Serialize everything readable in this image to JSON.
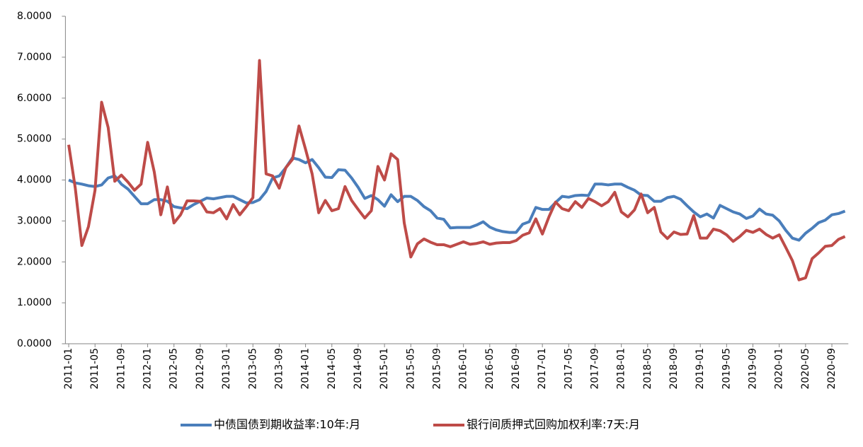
{
  "chart_data": {
    "type": "line",
    "categories": [
      "2011-01",
      null,
      null,
      null,
      "2011-05",
      null,
      null,
      null,
      "2011-09",
      null,
      null,
      null,
      "2012-01",
      null,
      null,
      null,
      "2012-05",
      null,
      null,
      null,
      "2012-09",
      null,
      null,
      null,
      "2013-01",
      null,
      null,
      null,
      "2013-05",
      null,
      null,
      null,
      "2013-09",
      null,
      null,
      null,
      "2014-01",
      null,
      null,
      null,
      "2014-05",
      null,
      null,
      null,
      "2014-09",
      null,
      null,
      null,
      "2015-01",
      null,
      null,
      null,
      "2015-05",
      null,
      null,
      null,
      "2015-09",
      null,
      null,
      null,
      "2016-01",
      null,
      null,
      null,
      "2016-05",
      null,
      null,
      null,
      "2016-09",
      null,
      null,
      null,
      "2017-01",
      null,
      null,
      null,
      "2017-05",
      null,
      null,
      null,
      "2017-09",
      null,
      null,
      null,
      "2018-01",
      null,
      null,
      null,
      "2018-05",
      null,
      null,
      null,
      "2018-09",
      null,
      null,
      null,
      "2019-01",
      null,
      null,
      null,
      "2019-05",
      null,
      null,
      null,
      "2019-09",
      null,
      null,
      null,
      "2020-01",
      null,
      null,
      null,
      "2020-05",
      null,
      null,
      null,
      "2020-09",
      null,
      null
    ],
    "series": [
      {
        "name": "中债国债到期收益率:10年:月",
        "color": "#4a7ebb",
        "values": [
          4.0,
          3.93,
          3.9,
          3.86,
          3.84,
          3.88,
          4.05,
          4.1,
          3.9,
          3.78,
          3.6,
          3.42,
          3.42,
          3.52,
          3.52,
          3.48,
          3.35,
          3.32,
          3.3,
          3.4,
          3.48,
          3.56,
          3.54,
          3.57,
          3.6,
          3.6,
          3.52,
          3.44,
          3.45,
          3.52,
          3.72,
          4.05,
          4.1,
          4.3,
          4.54,
          4.5,
          4.42,
          4.5,
          4.3,
          4.07,
          4.06,
          4.25,
          4.24,
          4.05,
          3.82,
          3.55,
          3.62,
          3.52,
          3.36,
          3.64,
          3.47,
          3.6,
          3.6,
          3.5,
          3.35,
          3.25,
          3.07,
          3.04,
          2.83,
          2.84,
          2.84,
          2.84,
          2.9,
          2.98,
          2.85,
          2.78,
          2.74,
          2.72,
          2.72,
          2.92,
          2.98,
          3.33,
          3.28,
          3.28,
          3.45,
          3.6,
          3.58,
          3.62,
          3.63,
          3.62,
          3.9,
          3.9,
          3.88,
          3.9,
          3.9,
          3.82,
          3.75,
          3.63,
          3.62,
          3.48,
          3.48,
          3.57,
          3.6,
          3.53,
          3.37,
          3.22,
          3.1,
          3.17,
          3.07,
          3.38,
          3.3,
          3.22,
          3.17,
          3.06,
          3.12,
          3.29,
          3.17,
          3.14,
          3.0,
          2.77,
          2.58,
          2.53,
          2.7,
          2.82,
          2.96,
          3.02,
          3.15,
          3.18,
          3.24
        ]
      },
      {
        "name": "银行间质押式回购加权利率:7天:月",
        "color": "#be4b48",
        "values": [
          4.86,
          3.8,
          2.4,
          2.86,
          3.75,
          5.9,
          5.28,
          3.97,
          4.12,
          3.95,
          3.75,
          3.9,
          4.92,
          4.2,
          3.15,
          3.83,
          2.95,
          3.15,
          3.49,
          3.49,
          3.48,
          3.22,
          3.2,
          3.3,
          3.05,
          3.4,
          3.15,
          3.35,
          3.57,
          6.92,
          4.15,
          4.1,
          3.8,
          4.3,
          4.5,
          5.32,
          4.75,
          4.15,
          3.2,
          3.5,
          3.25,
          3.3,
          3.84,
          3.5,
          3.28,
          3.07,
          3.25,
          4.33,
          4.0,
          4.64,
          4.5,
          2.95,
          2.12,
          2.44,
          2.56,
          2.48,
          2.42,
          2.42,
          2.37,
          2.43,
          2.49,
          2.43,
          2.45,
          2.49,
          2.43,
          2.46,
          2.47,
          2.47,
          2.52,
          2.65,
          2.71,
          3.05,
          2.68,
          3.1,
          3.46,
          3.3,
          3.25,
          3.47,
          3.33,
          3.55,
          3.47,
          3.37,
          3.47,
          3.7,
          3.22,
          3.1,
          3.27,
          3.66,
          3.2,
          3.33,
          2.73,
          2.57,
          2.73,
          2.67,
          2.68,
          3.13,
          2.58,
          2.58,
          2.8,
          2.76,
          2.66,
          2.5,
          2.62,
          2.77,
          2.72,
          2.8,
          2.67,
          2.58,
          2.66,
          2.35,
          2.03,
          1.56,
          1.61,
          2.08,
          2.22,
          2.38,
          2.4,
          2.55,
          2.62
        ]
      }
    ],
    "ylim": [
      0,
      8
    ],
    "yticks": [
      {
        "value": 0,
        "label": "0.0000"
      },
      {
        "value": 1,
        "label": "1.0000"
      },
      {
        "value": 2,
        "label": "2.0000"
      },
      {
        "value": 3,
        "label": "3.0000"
      },
      {
        "value": 4,
        "label": "4.0000"
      },
      {
        "value": 5,
        "label": "5.0000"
      },
      {
        "value": 6,
        "label": "6.0000"
      },
      {
        "value": 7,
        "label": "7.0000"
      },
      {
        "value": 8,
        "label": "8.0000"
      }
    ],
    "grid": false,
    "legend": "bottom"
  }
}
